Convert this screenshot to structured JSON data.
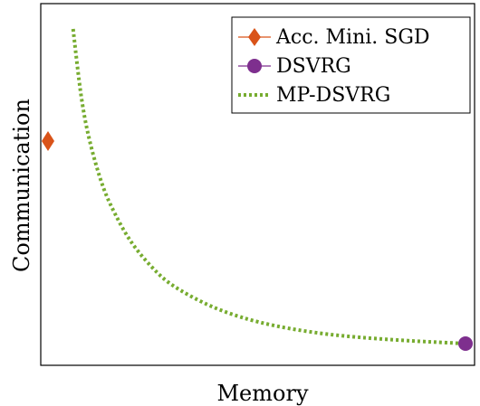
{
  "chart_data": {
    "type": "line",
    "xlabel": "Memory",
    "ylabel": "Communication",
    "xlim": [
      0,
      1
    ],
    "ylim": [
      0,
      1
    ],
    "grid": false,
    "ticks": "none",
    "legend_position": "top-right",
    "series": [
      {
        "name": "Acc. Mini. SGD",
        "kind": "marker",
        "marker": "diamond",
        "color": "#D95319",
        "points": [
          {
            "x": 0.0,
            "y": 0.62
          }
        ]
      },
      {
        "name": "DSVRG",
        "kind": "marker",
        "marker": "circle",
        "color": "#7E2F8E",
        "points": [
          {
            "x": 1.0,
            "y": 0.06
          }
        ]
      },
      {
        "name": "MP-DSVRG",
        "kind": "curve",
        "style": "dotted",
        "color": "#77AC30",
        "x": [
          0.06,
          0.08,
          0.1,
          0.13,
          0.16,
          0.2,
          0.25,
          0.3,
          0.38,
          0.46,
          0.55,
          0.65,
          0.75,
          0.85,
          0.93,
          1.0
        ],
        "y": [
          0.93,
          0.74,
          0.62,
          0.5,
          0.42,
          0.34,
          0.27,
          0.22,
          0.169,
          0.134,
          0.108,
          0.089,
          0.077,
          0.069,
          0.064,
          0.06
        ]
      }
    ]
  }
}
